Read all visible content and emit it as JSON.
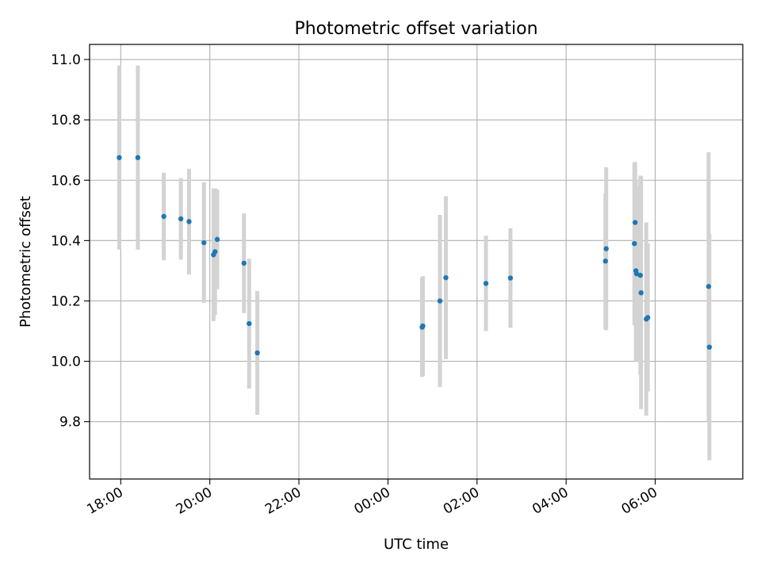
{
  "chart_data": {
    "type": "scatter",
    "title": "Photometric offset variation",
    "xlabel": "UTC time",
    "ylabel": "Photometric offset",
    "x_axis_kind": "time",
    "x_ticks": [
      "18:00",
      "20:00",
      "22:00",
      "00:00",
      "02:00",
      "04:00",
      "06:00"
    ],
    "y_ticks": [
      "9.8",
      "10.0",
      "10.2",
      "10.4",
      "10.6",
      "10.8",
      "11.0"
    ],
    "xlim": [
      "17:18",
      "07:58"
    ],
    "ylim": [
      9.61,
      11.05
    ],
    "grid": true,
    "marker_color": "#1f77b4",
    "errorbar_color": "#d3d3d3",
    "series": [
      {
        "points": [
          {
            "x": "17:58",
            "y": 10.675,
            "yerr": 0.305
          },
          {
            "x": "18:23",
            "y": 10.675,
            "yerr": 0.305
          },
          {
            "x": "18:58",
            "y": 10.48,
            "yerr": 0.145
          },
          {
            "x": "19:21",
            "y": 10.472,
            "yerr": 0.135
          },
          {
            "x": "19:32",
            "y": 10.463,
            "yerr": 0.175
          },
          {
            "x": "19:52",
            "y": 10.393,
            "yerr": 0.2
          },
          {
            "x": "20:05",
            "y": 10.353,
            "yerr": 0.22
          },
          {
            "x": "20:07",
            "y": 10.363,
            "yerr": 0.21
          },
          {
            "x": "20:10",
            "y": 10.404,
            "yerr": 0.165
          },
          {
            "x": "20:46",
            "y": 10.325,
            "yerr": 0.165
          },
          {
            "x": "20:53",
            "y": 10.125,
            "yerr": 0.215
          },
          {
            "x": "21:04",
            "y": 10.028,
            "yerr": 0.205
          },
          {
            "x": "00:46",
            "y": 10.113,
            "yerr": 0.165
          },
          {
            "x": "00:47",
            "y": 10.117,
            "yerr": 0.165
          },
          {
            "x": "01:10",
            "y": 10.2,
            "yerr": 0.285
          },
          {
            "x": "01:18",
            "y": 10.277,
            "yerr": 0.27
          },
          {
            "x": "02:12",
            "y": 10.258,
            "yerr": 0.158
          },
          {
            "x": "02:45",
            "y": 10.276,
            "yerr": 0.165
          },
          {
            "x": "04:53",
            "y": 10.332,
            "yerr": 0.225
          },
          {
            "x": "04:54",
            "y": 10.373,
            "yerr": 0.27
          },
          {
            "x": "05:32",
            "y": 10.39,
            "yerr": 0.27
          },
          {
            "x": "05:33",
            "y": 10.46,
            "yerr": 0.2
          },
          {
            "x": "05:34",
            "y": 10.3,
            "yerr": 0.3
          },
          {
            "x": "05:35",
            "y": 10.29,
            "yerr": 0.29
          },
          {
            "x": "05:40",
            "y": 10.285,
            "yerr": 0.33
          },
          {
            "x": "05:41",
            "y": 10.227,
            "yerr": 0.385
          },
          {
            "x": "05:48",
            "y": 10.14,
            "yerr": 0.32
          },
          {
            "x": "05:50",
            "y": 10.145,
            "yerr": 0.245
          },
          {
            "x": "07:12",
            "y": 10.248,
            "yerr": 0.445
          },
          {
            "x": "07:13",
            "y": 10.047,
            "yerr": 0.375
          }
        ]
      }
    ]
  }
}
